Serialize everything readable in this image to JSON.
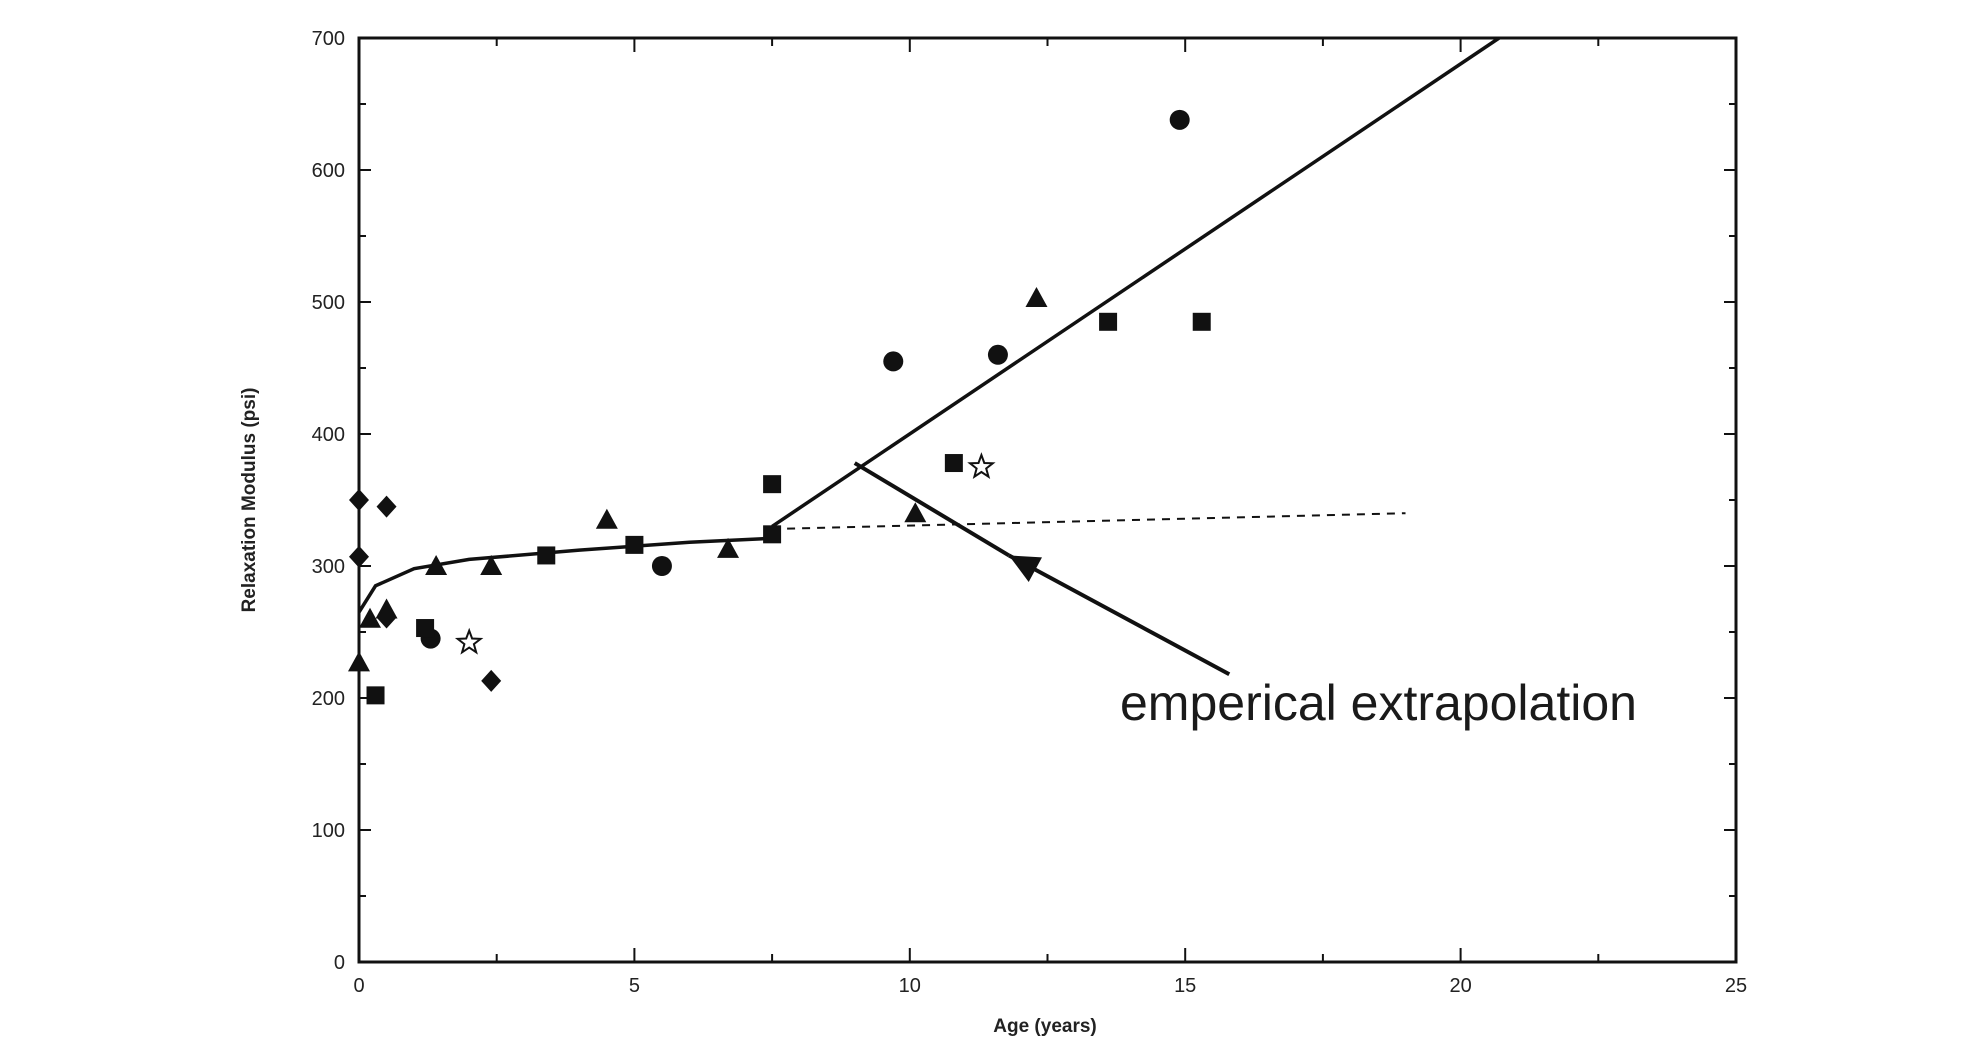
{
  "chart_data": {
    "type": "scatter",
    "xlabel": "Age (years)",
    "ylabel": "Relaxation Modulus (psi)",
    "xlim": [
      0,
      25
    ],
    "ylim": [
      0,
      700
    ],
    "xticks": [
      0,
      5,
      10,
      15,
      20,
      25
    ],
    "yticks": [
      0,
      100,
      200,
      300,
      400,
      500,
      600,
      700
    ],
    "xtick_labels": [
      "0",
      "5",
      "10",
      "15",
      "20",
      "25"
    ],
    "ytick_labels": [
      "0",
      "100",
      "200",
      "300",
      "400",
      "500",
      "600",
      "700"
    ],
    "grid": false,
    "series": [
      {
        "marker": "circle",
        "points": [
          [
            1.3,
            245
          ],
          [
            5.5,
            300
          ],
          [
            9.7,
            455
          ],
          [
            11.6,
            460
          ],
          [
            14.9,
            638
          ]
        ]
      },
      {
        "marker": "square",
        "points": [
          [
            0.3,
            202
          ],
          [
            1.2,
            253
          ],
          [
            3.4,
            308
          ],
          [
            5.0,
            316
          ],
          [
            7.5,
            362
          ],
          [
            7.5,
            324
          ],
          [
            10.8,
            378
          ],
          [
            13.6,
            485
          ],
          [
            15.3,
            485
          ]
        ]
      },
      {
        "marker": "triangle",
        "points": [
          [
            0,
            227
          ],
          [
            0.2,
            260
          ],
          [
            0.5,
            267
          ],
          [
            1.4,
            300
          ],
          [
            2.4,
            300
          ],
          [
            4.5,
            335
          ],
          [
            6.7,
            313
          ],
          [
            10.1,
            340
          ],
          [
            12.3,
            503
          ]
        ]
      },
      {
        "marker": "diamond",
        "points": [
          [
            0,
            350
          ],
          [
            0,
            307
          ],
          [
            0.5,
            345
          ],
          [
            0.5,
            261
          ],
          [
            2.4,
            213
          ]
        ]
      },
      {
        "marker": "star",
        "points": [
          [
            2.0,
            242
          ],
          [
            11.3,
            375
          ]
        ]
      }
    ],
    "fit_lines": [
      {
        "style": "solid",
        "points": [
          [
            0,
            265
          ],
          [
            0.3,
            285
          ],
          [
            1,
            298
          ],
          [
            2,
            305
          ],
          [
            4,
            312
          ],
          [
            6,
            318
          ],
          [
            7.5,
            321
          ]
        ]
      },
      {
        "style": "solid",
        "points": [
          [
            7.5,
            330
          ],
          [
            20.7,
            700
          ]
        ]
      },
      {
        "style": "dashed",
        "points": [
          [
            7.5,
            328
          ],
          [
            19,
            340
          ]
        ]
      }
    ],
    "annotation": {
      "text": "emperical extrapolation",
      "arrow_from": [
        15.8,
        218
      ],
      "arrow_to": [
        11.8,
        308
      ],
      "extra_line_from": [
        9.0,
        378
      ],
      "extra_line_to": [
        11.8,
        308
      ]
    }
  }
}
